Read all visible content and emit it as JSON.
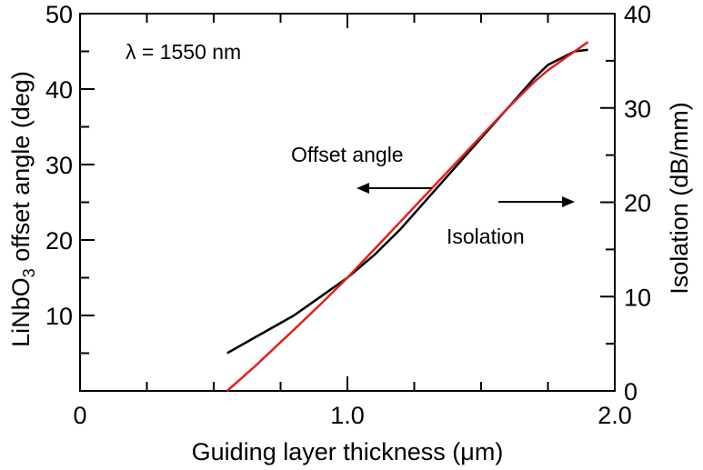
{
  "chart_data": {
    "type": "line",
    "title": "",
    "annotation": "λ = 1550 nm",
    "xlabel": "Guiding layer thickness (μm)",
    "ylabel_left_prefix": "LiNbO",
    "ylabel_left_sub": "3",
    "ylabel_left_suffix": " offset angle (deg)",
    "ylabel_right": "Isolation (dB/mm)",
    "xlim": [
      0,
      2.0
    ],
    "ylim_left": [
      0,
      50
    ],
    "ylim_right": [
      0,
      40
    ],
    "x_ticks": [
      0,
      1.0,
      2.0
    ],
    "x_tick_labels": [
      "0",
      "1.0",
      "2.0"
    ],
    "y_left_ticks": [
      10,
      20,
      30,
      40,
      50
    ],
    "y_left_tick_labels": [
      "10",
      "20",
      "30",
      "40",
      "50"
    ],
    "y_right_ticks": [
      0,
      10,
      20,
      30,
      40
    ],
    "y_right_tick_labels": [
      "0",
      "10",
      "20",
      "30",
      "40"
    ],
    "grid": false,
    "series": [
      {
        "name": "Offset angle",
        "axis": "left",
        "color": "#000000",
        "arrow_direction": "left",
        "x": [
          0.55,
          0.65,
          0.8,
          0.9,
          1.0,
          1.1,
          1.2,
          1.3,
          1.4,
          1.5,
          1.6,
          1.7,
          1.75,
          1.85,
          1.9
        ],
        "y": [
          5.0,
          7.0,
          10.0,
          12.5,
          15.0,
          18.0,
          21.5,
          25.5,
          29.5,
          33.5,
          37.5,
          41.5,
          43.2,
          45.0,
          45.2
        ]
      },
      {
        "name": "Isolation",
        "axis": "right",
        "color": "#e0201c",
        "arrow_direction": "right",
        "x": [
          0.55,
          0.65,
          0.8,
          0.9,
          1.0,
          1.1,
          1.2,
          1.3,
          1.4,
          1.5,
          1.6,
          1.7,
          1.75,
          1.85,
          1.9
        ],
        "y": [
          0.0,
          2.5,
          6.5,
          9.2,
          12.0,
          15.0,
          18.0,
          21.0,
          24.0,
          27.0,
          30.0,
          32.8,
          34.0,
          36.0,
          37.0
        ]
      }
    ]
  }
}
